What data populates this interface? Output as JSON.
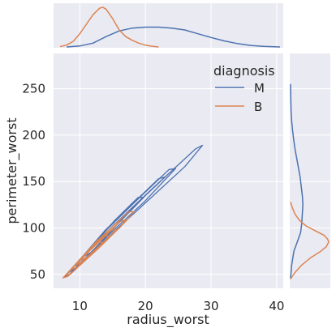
{
  "chart_data": {
    "type": "kde-jointplot",
    "xlabel": "radius_worst",
    "ylabel": "perimeter_worst",
    "xlim": [
      6,
      41
    ],
    "ylim": [
      35,
      288
    ],
    "x_ticks": [
      10,
      20,
      30,
      40
    ],
    "y_ticks": [
      50,
      100,
      150,
      200,
      250
    ],
    "grid": true,
    "legend": {
      "title": "diagnosis",
      "placement": "top-right"
    },
    "series": [
      {
        "name": "M",
        "color": "#4c72b0",
        "contours": [
          [
            [
              7.6,
              47
            ],
            [
              8.4,
              50
            ],
            [
              14,
              88
            ],
            [
              20,
              127
            ],
            [
              26,
              166
            ],
            [
              28.7,
              189
            ],
            [
              27.6,
              185
            ],
            [
              21,
              142
            ],
            [
              15,
              102
            ],
            [
              10,
              66
            ],
            [
              7.6,
              47
            ]
          ],
          [
            [
              8.3,
              52
            ],
            [
              9.2,
              56
            ],
            [
              14.3,
              92
            ],
            [
              19.8,
              128
            ],
            [
              24.6,
              164
            ],
            [
              23.6,
              163
            ],
            [
              18.4,
              128
            ],
            [
              13.2,
              92
            ],
            [
              8.3,
              52
            ]
          ],
          [
            [
              9.4,
              59
            ],
            [
              10.6,
              65
            ],
            [
              15.6,
              103
            ],
            [
              20.3,
              137
            ],
            [
              23,
              155
            ],
            [
              22,
              153
            ],
            [
              18.2,
              127
            ],
            [
              13.8,
              97
            ],
            [
              9.4,
              59
            ]
          ],
          [
            [
              10.6,
              69
            ],
            [
              11.8,
              74
            ],
            [
              16.6,
              111
            ],
            [
              19.6,
              133
            ],
            [
              18.9,
              133
            ],
            [
              15.3,
              108
            ],
            [
              10.6,
              69
            ]
          ]
        ],
        "marginal_x": {
          "x": [
            8,
            10,
            12,
            14,
            16,
            18,
            20,
            22,
            24,
            26,
            28,
            30,
            32,
            34,
            36,
            38,
            40.5
          ],
          "density": [
            0,
            0.005,
            0.02,
            0.055,
            0.085,
            0.1,
            0.105,
            0.105,
            0.1,
            0.09,
            0.07,
            0.05,
            0.032,
            0.018,
            0.008,
            0.003,
            0
          ]
        },
        "marginal_y": {
          "y": [
            45,
            60,
            75,
            85,
            95,
            105,
            115,
            125,
            135,
            145,
            155,
            165,
            175,
            185,
            195,
            205,
            215,
            225,
            240,
            255
          ],
          "density": [
            0,
            0.001,
            0.003,
            0.006,
            0.009,
            0.01,
            0.0105,
            0.011,
            0.0105,
            0.0095,
            0.0085,
            0.007,
            0.0055,
            0.004,
            0.0028,
            0.0018,
            0.001,
            0.0005,
            0.0002,
            0
          ]
        }
      },
      {
        "name": "B",
        "color": "#dd8452",
        "contours": [
          [
            [
              7.4,
              46
            ],
            [
              8.2,
              48
            ],
            [
              13,
              79
            ],
            [
              17,
              107
            ],
            [
              18.3,
              118
            ],
            [
              17.4,
              117
            ],
            [
              12.6,
              86
            ],
            [
              7.4,
              46
            ]
          ],
          [
            [
              7.9,
              49
            ],
            [
              8.7,
              51
            ],
            [
              12.8,
              79
            ],
            [
              16.2,
              101
            ],
            [
              17,
              109
            ],
            [
              16.2,
              107
            ],
            [
              12.2,
              82
            ],
            [
              7.9,
              49
            ]
          ],
          [
            [
              8.7,
              55
            ],
            [
              9.6,
              58
            ],
            [
              13.2,
              82
            ],
            [
              15.6,
              98
            ],
            [
              14.9,
              98
            ],
            [
              11.7,
              78
            ],
            [
              8.7,
              55
            ]
          ],
          [
            [
              9.4,
              60
            ],
            [
              10.3,
              63
            ],
            [
              13,
              81
            ],
            [
              14.6,
              91
            ],
            [
              14,
              92
            ],
            [
              11.3,
              74
            ],
            [
              9.4,
              60
            ]
          ],
          [
            [
              10.1,
              65
            ],
            [
              11,
              68
            ],
            [
              12.9,
              80
            ],
            [
              13.5,
              84
            ],
            [
              12.9,
              85
            ],
            [
              11.3,
              74
            ],
            [
              10.1,
              65
            ]
          ]
        ],
        "marginal_x": {
          "x": [
            7,
            8,
            9,
            10,
            11,
            12,
            13,
            13.5,
            14,
            15,
            16,
            17,
            18,
            19,
            20,
            21,
            22
          ],
          "density": [
            0.002,
            0.01,
            0.03,
            0.07,
            0.12,
            0.17,
            0.205,
            0.21,
            0.2,
            0.15,
            0.09,
            0.055,
            0.035,
            0.02,
            0.01,
            0.004,
            0
          ]
        },
        "marginal_y": {
          "y": [
            45,
            52,
            60,
            68,
            75,
            80,
            85,
            88,
            92,
            97,
            102,
            108,
            115,
            122,
            128
          ],
          "density": [
            0,
            0.004,
            0.01,
            0.018,
            0.027,
            0.032,
            0.034,
            0.033,
            0.03,
            0.022,
            0.014,
            0.008,
            0.004,
            0.0015,
            0
          ]
        }
      }
    ]
  }
}
